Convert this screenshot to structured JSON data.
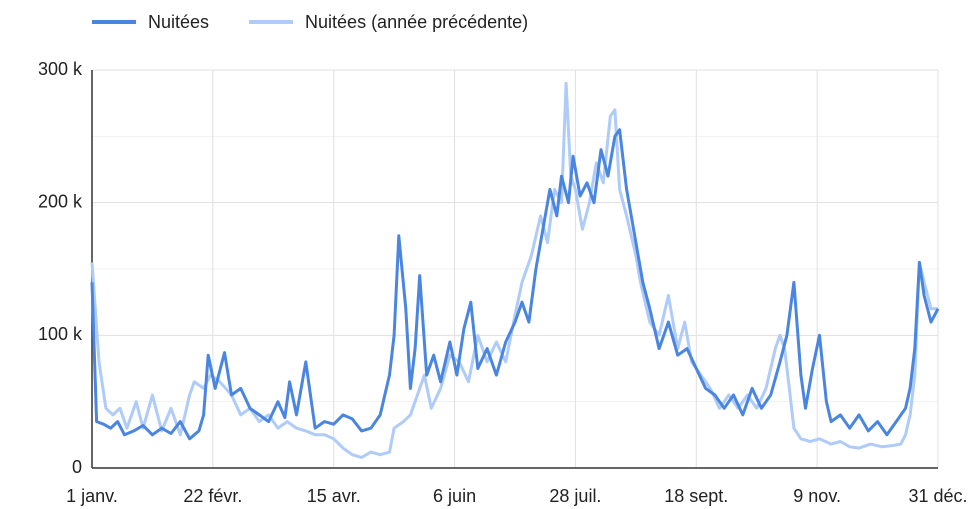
{
  "chart_data": {
    "type": "line",
    "xlim": [
      0,
      364
    ],
    "xticks": [
      {
        "value": 0,
        "label": "1 janv."
      },
      {
        "value": 52,
        "label": "22 févr."
      },
      {
        "value": 104,
        "label": "15 avr."
      },
      {
        "value": 156,
        "label": "6 juin"
      },
      {
        "value": 208,
        "label": "28 juil."
      },
      {
        "value": 260,
        "label": "18 sept."
      },
      {
        "value": 312,
        "label": "9 nov."
      },
      {
        "value": 364,
        "label": "31 déc."
      }
    ],
    "ylim": [
      0,
      300000
    ],
    "yticks": [
      0,
      {
        "value": 100000,
        "label": "100 k"
      },
      {
        "value": 200000,
        "label": "200 k"
      },
      {
        "value": 300000,
        "label": "300 k"
      }
    ],
    "minor_yticks": [
      50000,
      150000,
      250000
    ],
    "grid": true,
    "legend": "top",
    "series": [
      {
        "name": "Nuitées",
        "color": "#4a86e0",
        "x": [
          0,
          2,
          5,
          8,
          11,
          14,
          18,
          22,
          26,
          30,
          34,
          38,
          42,
          46,
          48,
          50,
          53,
          57,
          60,
          64,
          68,
          72,
          76,
          80,
          83,
          85,
          88,
          92,
          96,
          100,
          104,
          108,
          112,
          116,
          120,
          124,
          126,
          128,
          130,
          132,
          135,
          137,
          139,
          141,
          144,
          147,
          150,
          154,
          157,
          160,
          163,
          166,
          170,
          174,
          178,
          182,
          185,
          188,
          191,
          194,
          197,
          200,
          202,
          205,
          207,
          210,
          213,
          216,
          219,
          222,
          225,
          227,
          230,
          234,
          237,
          240,
          244,
          248,
          252,
          256,
          260,
          264,
          268,
          272,
          276,
          280,
          284,
          288,
          292,
          296,
          299,
          302,
          305,
          307,
          310,
          313,
          316,
          318,
          322,
          326,
          330,
          334,
          338,
          342,
          346,
          350,
          352,
          354,
          356,
          358,
          361,
          364
        ],
        "values": [
          140000,
          35000,
          33000,
          30000,
          35000,
          25000,
          28000,
          32000,
          25000,
          30000,
          26000,
          35000,
          22000,
          28000,
          40000,
          85000,
          60000,
          87000,
          55000,
          60000,
          45000,
          40000,
          35000,
          50000,
          38000,
          65000,
          40000,
          80000,
          30000,
          35000,
          33000,
          40000,
          37000,
          28000,
          30000,
          40000,
          55000,
          70000,
          100000,
          175000,
          120000,
          60000,
          90000,
          145000,
          70000,
          85000,
          65000,
          95000,
          70000,
          105000,
          125000,
          75000,
          90000,
          70000,
          95000,
          110000,
          125000,
          110000,
          150000,
          180000,
          210000,
          190000,
          220000,
          200000,
          235000,
          205000,
          215000,
          200000,
          240000,
          220000,
          250000,
          255000,
          210000,
          170000,
          140000,
          120000,
          90000,
          110000,
          85000,
          90000,
          75000,
          60000,
          55000,
          45000,
          55000,
          40000,
          60000,
          45000,
          55000,
          80000,
          100000,
          140000,
          70000,
          45000,
          75000,
          100000,
          50000,
          35000,
          40000,
          30000,
          40000,
          28000,
          35000,
          25000,
          35000,
          45000,
          60000,
          90000,
          155000,
          130000,
          110000,
          120000
        ]
      },
      {
        "name": "Nuitées (année précédente)",
        "color": "#aecbfa",
        "x": [
          0,
          3,
          6,
          9,
          12,
          15,
          19,
          22,
          26,
          30,
          34,
          38,
          42,
          44,
          48,
          51,
          55,
          60,
          64,
          68,
          72,
          76,
          80,
          84,
          88,
          92,
          96,
          100,
          104,
          108,
          112,
          116,
          120,
          124,
          128,
          130,
          134,
          137,
          140,
          143,
          146,
          150,
          154,
          158,
          162,
          166,
          170,
          174,
          178,
          182,
          185,
          189,
          193,
          196,
          199,
          202,
          204,
          206,
          208,
          211,
          214,
          217,
          220,
          223,
          225,
          227,
          230,
          234,
          236,
          240,
          244,
          248,
          252,
          255,
          258,
          262,
          266,
          270,
          274,
          278,
          282,
          286,
          290,
          294,
          296,
          298,
          300,
          302,
          305,
          309,
          313,
          318,
          322,
          326,
          330,
          335,
          340,
          345,
          348,
          350,
          352,
          354,
          356,
          358,
          361,
          364
        ],
        "values": [
          155000,
          80000,
          45000,
          40000,
          45000,
          30000,
          50000,
          30000,
          55000,
          28000,
          45000,
          25000,
          55000,
          65000,
          60000,
          70000,
          65000,
          55000,
          40000,
          45000,
          35000,
          40000,
          30000,
          35000,
          30000,
          28000,
          25000,
          25000,
          22000,
          15000,
          10000,
          8000,
          12000,
          10000,
          12000,
          30000,
          35000,
          40000,
          55000,
          70000,
          45000,
          60000,
          85000,
          80000,
          65000,
          100000,
          80000,
          95000,
          80000,
          115000,
          140000,
          160000,
          190000,
          170000,
          210000,
          200000,
          290000,
          220000,
          210000,
          180000,
          200000,
          230000,
          215000,
          265000,
          270000,
          210000,
          190000,
          160000,
          140000,
          110000,
          100000,
          130000,
          90000,
          110000,
          80000,
          70000,
          60000,
          45000,
          55000,
          45000,
          55000,
          45000,
          60000,
          90000,
          100000,
          90000,
          60000,
          30000,
          22000,
          20000,
          22000,
          18000,
          20000,
          16000,
          15000,
          18000,
          16000,
          17000,
          18000,
          25000,
          40000,
          70000,
          155000,
          140000,
          120000,
          120000
        ]
      }
    ]
  }
}
